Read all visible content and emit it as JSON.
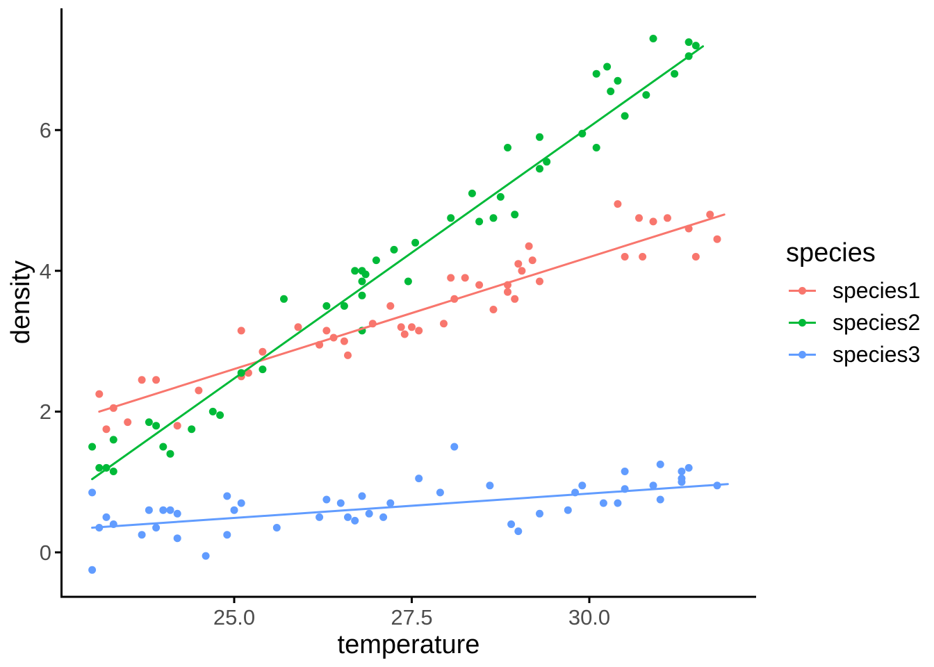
{
  "chart_data": {
    "type": "scatter",
    "title": "",
    "xlabel": "temperature",
    "ylabel": "density",
    "grid": false,
    "panel_background": "#ffffff",
    "axis_line_color": "#000000",
    "axis_text_color": "#4D4D4D",
    "xlim": [
      22.55,
      32.35
    ],
    "ylim": [
      -0.65,
      7.72
    ],
    "x_axis": {
      "label": "temperature",
      "ticks": [
        {
          "value": 25.0,
          "label": "25.0"
        },
        {
          "value": 27.5,
          "label": "27.5"
        },
        {
          "value": 30.0,
          "label": "30.0"
        }
      ]
    },
    "y_axis": {
      "label": "density",
      "ticks": [
        {
          "value": 0,
          "label": "0"
        },
        {
          "value": 2,
          "label": "2"
        },
        {
          "value": 4,
          "label": "4"
        },
        {
          "value": 6,
          "label": "6"
        }
      ]
    },
    "legend": {
      "title": "species",
      "position": "right",
      "entries": [
        {
          "label": "species1",
          "color": "#F8766D"
        },
        {
          "label": "species2",
          "color": "#00BA38"
        },
        {
          "label": "species3",
          "color": "#619CFF"
        }
      ]
    },
    "series": [
      {
        "name": "species1",
        "color": "#F8766D",
        "marker": "circle",
        "trend_line": [
          [
            23.1,
            2.0
          ],
          [
            31.9,
            4.8
          ]
        ],
        "points": [
          [
            23.1,
            2.25
          ],
          [
            23.2,
            1.75
          ],
          [
            23.3,
            2.05
          ],
          [
            23.5,
            1.85
          ],
          [
            23.7,
            2.45
          ],
          [
            23.9,
            2.45
          ],
          [
            24.2,
            1.8
          ],
          [
            24.5,
            2.3
          ],
          [
            25.1,
            3.15
          ],
          [
            25.1,
            2.5
          ],
          [
            25.2,
            2.55
          ],
          [
            25.4,
            2.85
          ],
          [
            25.9,
            3.2
          ],
          [
            26.2,
            2.95
          ],
          [
            26.3,
            3.15
          ],
          [
            26.4,
            3.05
          ],
          [
            26.55,
            3.0
          ],
          [
            26.6,
            2.8
          ],
          [
            26.95,
            3.25
          ],
          [
            27.2,
            3.5
          ],
          [
            27.35,
            3.2
          ],
          [
            27.4,
            3.1
          ],
          [
            27.5,
            3.2
          ],
          [
            27.6,
            3.15
          ],
          [
            27.95,
            3.25
          ],
          [
            28.05,
            3.9
          ],
          [
            28.1,
            3.6
          ],
          [
            28.25,
            3.9
          ],
          [
            28.45,
            3.8
          ],
          [
            28.65,
            3.45
          ],
          [
            28.85,
            3.8
          ],
          [
            28.85,
            3.7
          ],
          [
            28.95,
            3.6
          ],
          [
            29.0,
            4.1
          ],
          [
            29.05,
            4.0
          ],
          [
            29.15,
            4.35
          ],
          [
            29.2,
            4.15
          ],
          [
            29.3,
            3.85
          ],
          [
            30.4,
            4.95
          ],
          [
            30.5,
            4.2
          ],
          [
            30.7,
            4.75
          ],
          [
            30.75,
            4.2
          ],
          [
            30.9,
            4.7
          ],
          [
            31.1,
            4.75
          ],
          [
            31.4,
            4.6
          ],
          [
            31.5,
            4.2
          ],
          [
            31.7,
            4.8
          ],
          [
            31.8,
            4.45
          ]
        ]
      },
      {
        "name": "species2",
        "color": "#00BA38",
        "marker": "circle",
        "trend_line": [
          [
            23.0,
            1.04
          ],
          [
            31.6,
            7.19
          ]
        ],
        "points": [
          [
            23.0,
            1.5
          ],
          [
            23.1,
            1.2
          ],
          [
            23.2,
            1.2
          ],
          [
            23.3,
            1.15
          ],
          [
            23.3,
            1.6
          ],
          [
            23.8,
            1.85
          ],
          [
            23.9,
            1.8
          ],
          [
            24.0,
            1.5
          ],
          [
            24.1,
            1.4
          ],
          [
            24.4,
            1.75
          ],
          [
            24.7,
            2.0
          ],
          [
            24.8,
            1.95
          ],
          [
            25.1,
            2.55
          ],
          [
            25.4,
            2.6
          ],
          [
            25.7,
            3.6
          ],
          [
            26.3,
            3.5
          ],
          [
            26.55,
            3.5
          ],
          [
            26.8,
            3.15
          ],
          [
            26.7,
            4.0
          ],
          [
            26.8,
            4.0
          ],
          [
            26.85,
            3.95
          ],
          [
            26.8,
            3.85
          ],
          [
            26.8,
            3.65
          ],
          [
            27.0,
            4.15
          ],
          [
            27.25,
            4.3
          ],
          [
            27.55,
            4.4
          ],
          [
            27.45,
            3.85
          ],
          [
            28.05,
            4.75
          ],
          [
            28.35,
            5.1
          ],
          [
            28.45,
            4.7
          ],
          [
            28.65,
            4.75
          ],
          [
            28.75,
            5.05
          ],
          [
            28.85,
            5.75
          ],
          [
            28.95,
            4.8
          ],
          [
            29.3,
            5.9
          ],
          [
            29.3,
            5.45
          ],
          [
            29.4,
            5.55
          ],
          [
            29.9,
            5.95
          ],
          [
            30.1,
            6.8
          ],
          [
            30.1,
            5.75
          ],
          [
            30.25,
            6.9
          ],
          [
            30.3,
            6.55
          ],
          [
            30.4,
            6.7
          ],
          [
            30.5,
            6.2
          ],
          [
            30.8,
            6.5
          ],
          [
            30.9,
            7.3
          ],
          [
            31.2,
            6.8
          ],
          [
            31.4,
            7.25
          ],
          [
            31.4,
            7.05
          ],
          [
            31.5,
            7.2
          ]
        ]
      },
      {
        "name": "species3",
        "color": "#619CFF",
        "marker": "circle",
        "trend_line": [
          [
            23.0,
            0.35
          ],
          [
            31.95,
            0.97
          ]
        ],
        "points": [
          [
            23.0,
            0.85
          ],
          [
            23.0,
            -0.25
          ],
          [
            23.1,
            0.35
          ],
          [
            23.2,
            0.5
          ],
          [
            23.3,
            0.4
          ],
          [
            23.7,
            0.25
          ],
          [
            23.8,
            0.6
          ],
          [
            23.9,
            0.35
          ],
          [
            24.0,
            0.6
          ],
          [
            24.1,
            0.6
          ],
          [
            24.2,
            0.55
          ],
          [
            24.2,
            0.2
          ],
          [
            24.6,
            -0.05
          ],
          [
            24.9,
            0.8
          ],
          [
            24.9,
            0.25
          ],
          [
            25.0,
            0.6
          ],
          [
            25.1,
            0.7
          ],
          [
            25.6,
            0.35
          ],
          [
            26.2,
            0.5
          ],
          [
            26.3,
            0.75
          ],
          [
            26.5,
            0.7
          ],
          [
            26.6,
            0.5
          ],
          [
            26.7,
            0.45
          ],
          [
            26.8,
            0.8
          ],
          [
            26.9,
            0.55
          ],
          [
            27.1,
            0.5
          ],
          [
            27.2,
            0.7
          ],
          [
            27.6,
            1.05
          ],
          [
            27.9,
            0.85
          ],
          [
            28.1,
            1.5
          ],
          [
            28.6,
            0.95
          ],
          [
            28.9,
            0.4
          ],
          [
            29.0,
            0.3
          ],
          [
            29.3,
            0.55
          ],
          [
            29.7,
            0.6
          ],
          [
            29.8,
            0.85
          ],
          [
            29.9,
            0.95
          ],
          [
            30.2,
            0.7
          ],
          [
            30.4,
            0.7
          ],
          [
            30.5,
            1.15
          ],
          [
            30.5,
            0.9
          ],
          [
            30.9,
            0.95
          ],
          [
            31.0,
            1.25
          ],
          [
            31.0,
            0.75
          ],
          [
            31.3,
            1.15
          ],
          [
            31.3,
            1.05
          ],
          [
            31.3,
            1.0
          ],
          [
            31.4,
            1.2
          ],
          [
            31.8,
            0.95
          ]
        ]
      }
    ]
  }
}
